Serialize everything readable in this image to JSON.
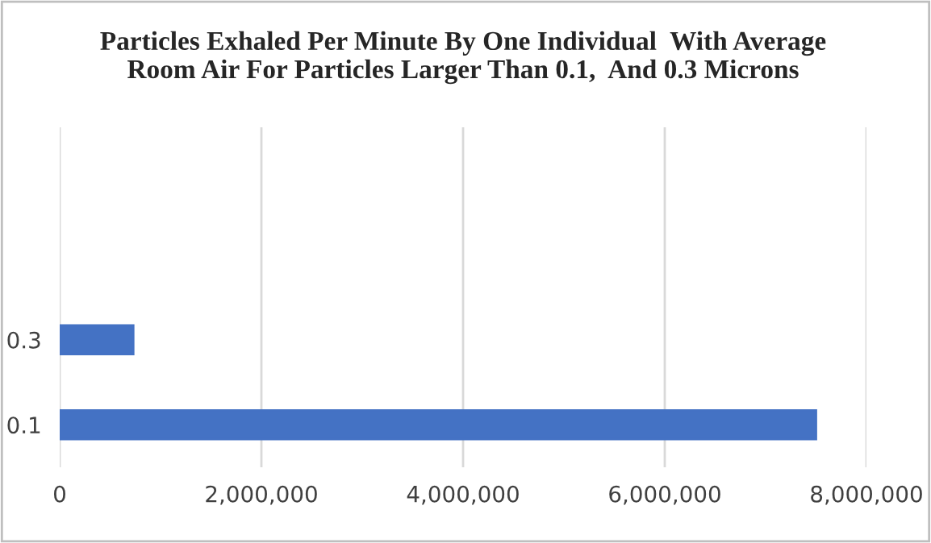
{
  "chart_data": {
    "type": "bar",
    "orientation": "horizontal",
    "title": "Particles Exhaled Per Minute By One Individual  With Average\nRoom Air For Particles Larger Than 0.1,  And 0.3 Microns",
    "categories": [
      null,
      null,
      "0.3",
      "0.1"
    ],
    "values": [
      null,
      null,
      730000,
      7500000
    ],
    "color": "#4472c4",
    "xlim": [
      0,
      8000000
    ],
    "xticks": [
      {
        "value": 0,
        "label": "0"
      },
      {
        "value": 2000000,
        "label": "2,000,000"
      },
      {
        "value": 4000000,
        "label": "4,000,000"
      },
      {
        "value": 6000000,
        "label": "6,000,000"
      },
      {
        "value": 8000000,
        "label": "8,000,000"
      }
    ],
    "grid": "x",
    "legend": false
  }
}
